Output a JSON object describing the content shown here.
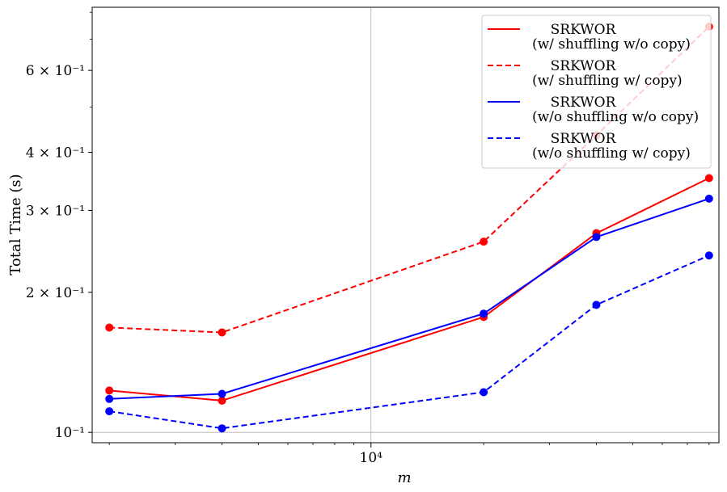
{
  "chart_data": {
    "type": "line",
    "title": "",
    "xlabel": "m",
    "ylabel": "Total Time (s)",
    "x_scale": "log",
    "y_scale": "log",
    "xlim": [
      1800,
      85000
    ],
    "ylim": [
      0.095,
      0.82
    ],
    "grid": "major only",
    "legend_position": "top-right",
    "x": [
      2000,
      4000,
      20000,
      40000,
      80000
    ],
    "x_ticks": [
      {
        "value": 10000,
        "label": "10⁴"
      }
    ],
    "y_ticks": [
      {
        "value": 0.1,
        "label": "10⁻¹"
      },
      {
        "value": 0.2,
        "label": "2 × 10⁻¹"
      },
      {
        "value": 0.3,
        "label": "3 × 10⁻¹"
      },
      {
        "value": 0.4,
        "label": "4 × 10⁻¹"
      },
      {
        "value": 0.6,
        "label": "6 × 10⁻¹"
      }
    ],
    "series": [
      {
        "name_line1": "SRKWOR",
        "name_line2": "(w/ shuffling w/o copy)",
        "color": "#ff0000",
        "dash": "solid",
        "values": [
          0.123,
          0.117,
          0.177,
          0.268,
          0.352
        ]
      },
      {
        "name_line1": "SRKWOR",
        "name_line2": "(w/ shuffling w/ copy)",
        "color": "#ff0000",
        "dash": "dashed",
        "values": [
          0.168,
          0.164,
          0.257,
          0.435,
          0.745
        ]
      },
      {
        "name_line1": "SRKWOR",
        "name_line2": "(w/o shuffling w/o copy)",
        "color": "#0000ff",
        "dash": "solid",
        "values": [
          0.118,
          0.121,
          0.18,
          0.263,
          0.318
        ]
      },
      {
        "name_line1": "SRKWOR",
        "name_line2": "(w/o shuffling w/ copy)",
        "color": "#0000ff",
        "dash": "dashed",
        "values": [
          0.111,
          0.102,
          0.122,
          0.188,
          0.24
        ]
      }
    ]
  }
}
